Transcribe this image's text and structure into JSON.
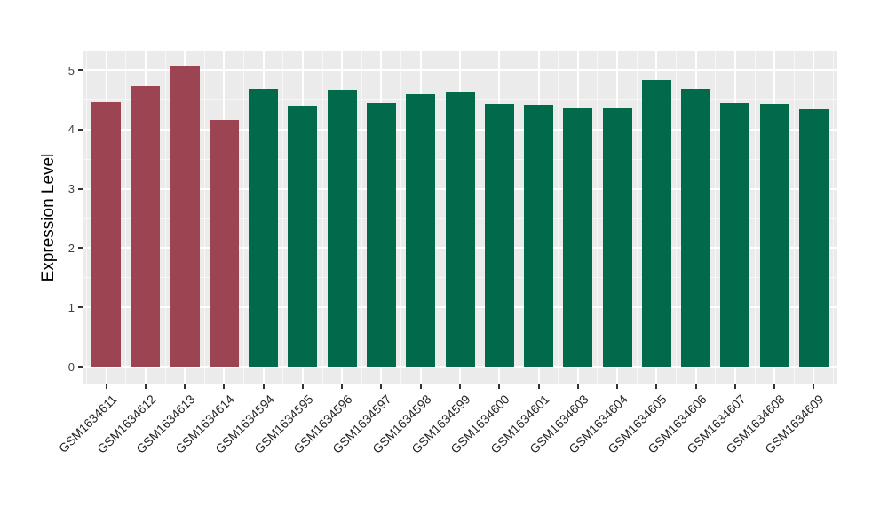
{
  "chart_data": {
    "type": "bar",
    "title": "",
    "xlabel": "",
    "ylabel": "Expression Level",
    "categories": [
      "GSM1634611",
      "GSM1634612",
      "GSM1634613",
      "GSM1634614",
      "GSM1634594",
      "GSM1634595",
      "GSM1634596",
      "GSM1634597",
      "GSM1634598",
      "GSM1634599",
      "GSM1634600",
      "GSM1634601",
      "GSM1634603",
      "GSM1634604",
      "GSM1634605",
      "GSM1634606",
      "GSM1634607",
      "GSM1634608",
      "GSM1634609"
    ],
    "values": [
      4.46,
      4.73,
      5.07,
      4.16,
      4.69,
      4.4,
      4.67,
      4.45,
      4.6,
      4.62,
      4.43,
      4.41,
      4.36,
      4.36,
      4.83,
      4.69,
      4.45,
      4.43,
      4.34
    ],
    "bar_colors": [
      "#9C4452",
      "#9C4452",
      "#9C4452",
      "#9C4452",
      "#016A4A",
      "#016A4A",
      "#016A4A",
      "#016A4A",
      "#016A4A",
      "#016A4A",
      "#016A4A",
      "#016A4A",
      "#016A4A",
      "#016A4A",
      "#016A4A",
      "#016A4A",
      "#016A4A",
      "#016A4A",
      "#016A4A"
    ],
    "groups": [
      {
        "name": "group-red",
        "color": "#9C4452",
        "first_category": "GSM1634611",
        "last_category": "GSM1634614"
      },
      {
        "name": "group-green",
        "color": "#016A4A",
        "first_category": "GSM1634594",
        "last_category": "GSM1634609"
      }
    ],
    "yticks": [
      0,
      1,
      2,
      3,
      4,
      5
    ],
    "ylim": [
      -0.3,
      5.33
    ],
    "grid": true,
    "legend_position": "none",
    "colors": {
      "panel_background": "#EBEBEB",
      "grid": "#FFFFFF",
      "axis_tick_text": "#404040",
      "axis_title": "#000000",
      "tick_marks": "#333333",
      "figure_background": "#FFFFFF"
    }
  }
}
